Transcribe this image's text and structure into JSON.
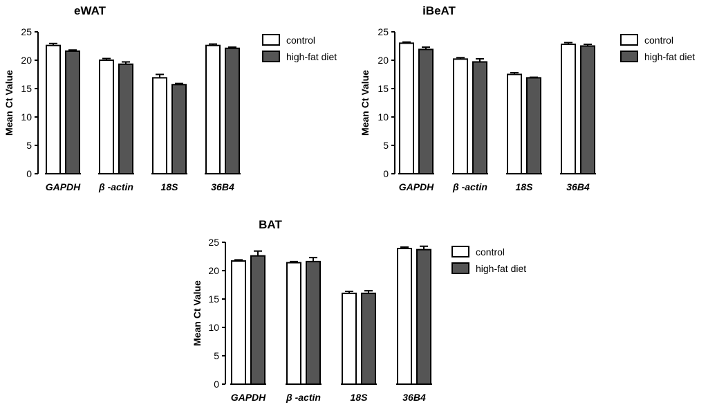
{
  "chart_data": [
    {
      "type": "bar",
      "title": "eWAT",
      "ylabel": "Mean Ct Value",
      "xlabel": "",
      "ylim": [
        0,
        25
      ],
      "yticks": [
        0,
        5,
        10,
        15,
        20,
        25
      ],
      "categories": [
        "GAPDH",
        "β -actin",
        "18S",
        "36B4"
      ],
      "series": [
        {
          "name": "control",
          "values": [
            22.6,
            20.0,
            16.9,
            22.6
          ],
          "errors": [
            0.35,
            0.3,
            0.6,
            0.25
          ]
        },
        {
          "name": "high-fat diet",
          "values": [
            21.6,
            19.3,
            15.7,
            22.1
          ],
          "errors": [
            0.2,
            0.4,
            0.2,
            0.2
          ]
        }
      ],
      "legend": "top-right"
    },
    {
      "type": "bar",
      "title": "iBeAT",
      "ylabel": "Mean Ct Value",
      "xlabel": "",
      "ylim": [
        0,
        25
      ],
      "yticks": [
        0,
        5,
        10,
        15,
        20,
        25
      ],
      "categories": [
        "GAPDH",
        "β -actin",
        "18S",
        "36B4"
      ],
      "series": [
        {
          "name": "control",
          "values": [
            23.0,
            20.2,
            17.5,
            22.8
          ],
          "errors": [
            0.2,
            0.25,
            0.3,
            0.3
          ]
        },
        {
          "name": "high-fat diet",
          "values": [
            21.9,
            19.7,
            16.9,
            22.5
          ],
          "errors": [
            0.4,
            0.55,
            0.1,
            0.3
          ]
        }
      ],
      "legend": "top-right"
    },
    {
      "type": "bar",
      "title": "BAT",
      "ylabel": "Mean Ct Value",
      "xlabel": "",
      "ylim": [
        0,
        25
      ],
      "yticks": [
        0,
        5,
        10,
        15,
        20,
        25
      ],
      "categories": [
        "GAPDH",
        "β -actin",
        "18S",
        "36B4"
      ],
      "series": [
        {
          "name": "control",
          "values": [
            21.7,
            21.4,
            16.0,
            23.9
          ],
          "errors": [
            0.2,
            0.2,
            0.35,
            0.25
          ]
        },
        {
          "name": "high-fat diet",
          "values": [
            22.6,
            21.6,
            16.0,
            23.7
          ],
          "errors": [
            0.85,
            0.7,
            0.45,
            0.6
          ]
        }
      ],
      "legend": "top-right"
    }
  ],
  "colors": {
    "control": "#ffffff",
    "high_fat_diet": "#555555",
    "stroke": "#000000"
  }
}
